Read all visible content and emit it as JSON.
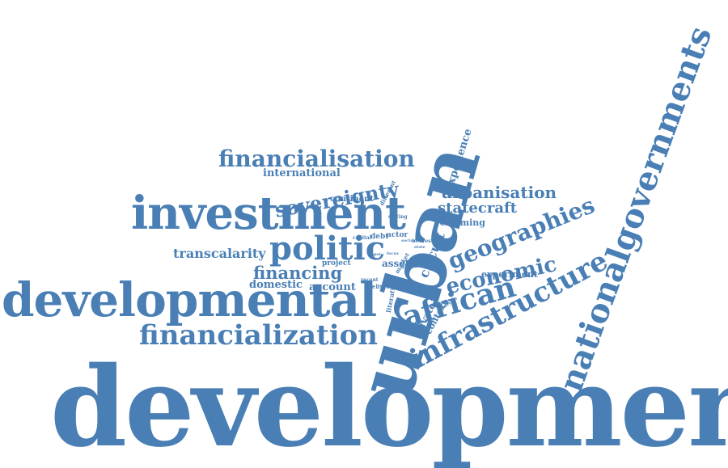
{
  "accent_color": "#4a7fb5",
  "words": {
    "development": "development",
    "developmental": "developmental",
    "urban": "urban",
    "nationalgovernments": "nationalgovernments",
    "investment": "investment",
    "financialization": "financialization",
    "politic": "politic",
    "infrastructure": "infrastructure",
    "african": "african",
    "financialisation": "financialisation",
    "geographies": "geographies",
    "economic": "economic",
    "sovereignty": "sovereignty",
    "urbanisation": "urbanisation",
    "statecraft": "statecraft",
    "financing": "financing",
    "transcalarity": "transcalarity",
    "international": "international",
    "experience": "experience",
    "circuit": "circuit",
    "domestic": "domestic",
    "account": "account",
    "continent": "continent",
    "reframing": "reframing",
    "experiment": "experiment",
    "private": "private",
    "context": "context",
    "asset": "asset",
    "project": "project",
    "debt": "debt",
    "actor": "actor",
    "capital": "capital",
    "different": "different",
    "setting": "setting",
    "interest": "interest",
    "market": "market",
    "global": "global",
    "delivery": "delivery",
    "literature": "literature",
    "recent": "recent",
    "analysis": "analysis",
    "paper": "paper",
    "focus": "focus",
    "sector": "sector",
    "state": "state"
  }
}
